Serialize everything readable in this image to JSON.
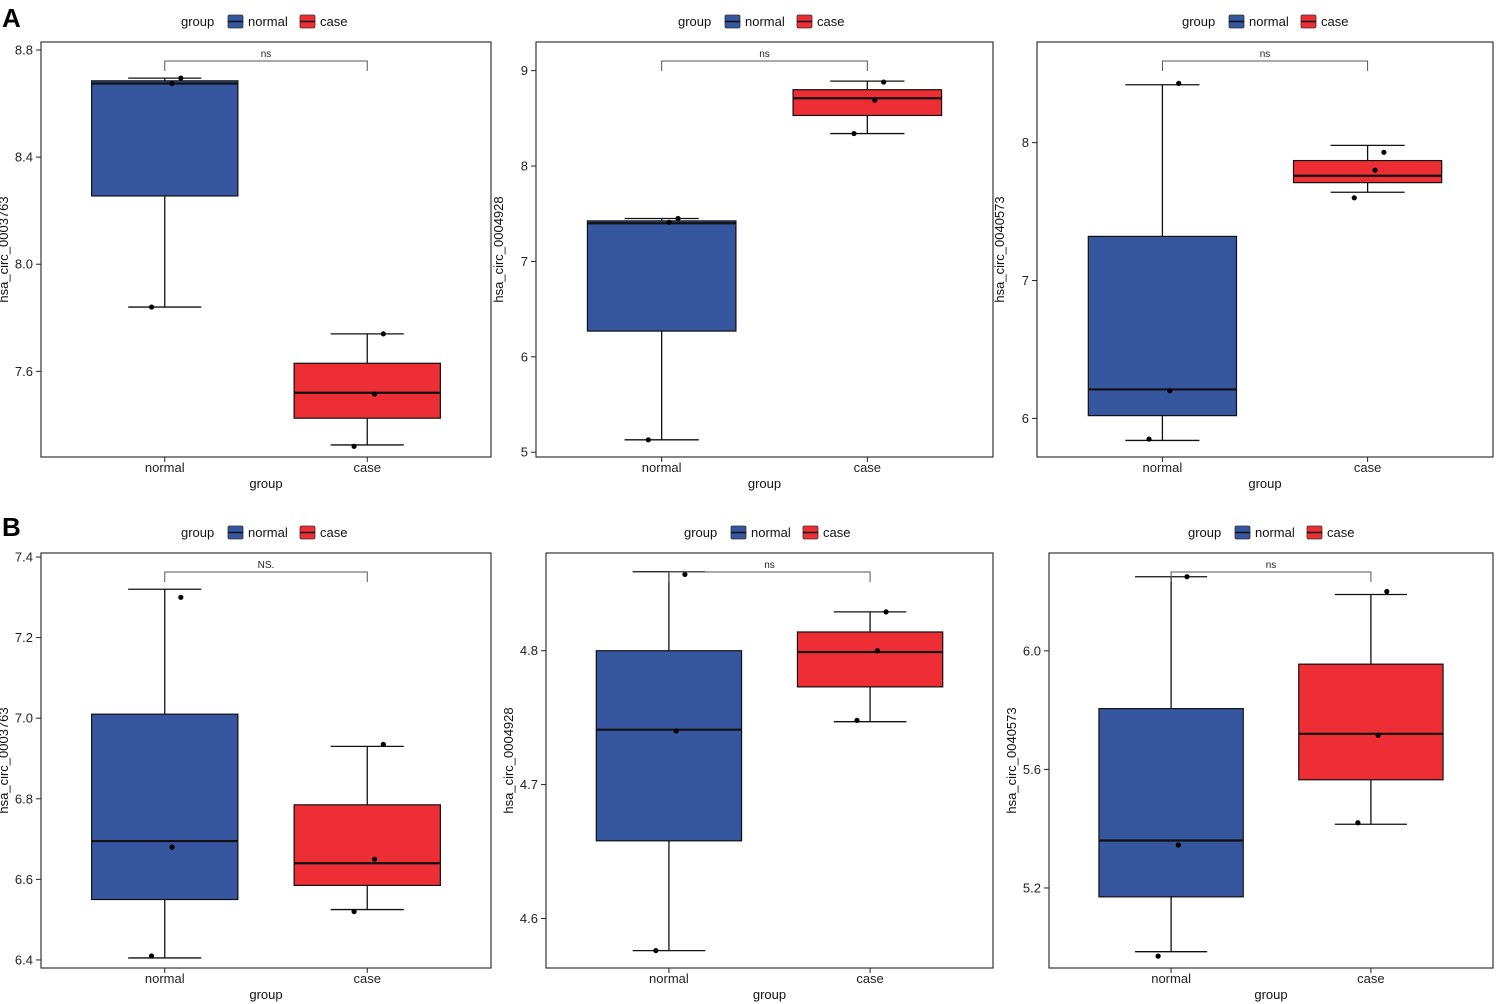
{
  "figure": {
    "panel_labels": [
      "A",
      "B"
    ],
    "colors": {
      "normal": "#3656a0",
      "case": "#ee2e35",
      "stroke": "#111111",
      "bracket": "#555555"
    }
  },
  "chart_data": [
    {
      "type": "box",
      "panel": "A",
      "title": "",
      "xlabel": "group",
      "ylabel": "hsa_circ_0003763",
      "categories": [
        "normal",
        "case"
      ],
      "legend": {
        "title": "group",
        "entries": [
          "normal",
          "case"
        ],
        "position": "top"
      },
      "ylim": [
        7.28,
        8.83
      ],
      "yticks": [
        7.6,
        8.0,
        8.4,
        8.8
      ],
      "ytick_labels": [
        "7.6",
        "8.0",
        "8.4",
        "8.8"
      ],
      "significance": "ns",
      "series": [
        {
          "name": "normal",
          "min": 7.84,
          "q1": 8.255,
          "median": 8.675,
          "q3": 8.685,
          "max": 8.695,
          "points": [
            7.84,
            8.675,
            8.695
          ]
        },
        {
          "name": "case",
          "min": 7.325,
          "q1": 7.425,
          "median": 7.52,
          "q3": 7.63,
          "max": 7.74,
          "points": [
            7.32,
            7.515,
            7.74
          ]
        }
      ]
    },
    {
      "type": "box",
      "panel": "A",
      "title": "",
      "xlabel": "group",
      "ylabel": "hsa_circ_0004928",
      "categories": [
        "normal",
        "case"
      ],
      "legend": {
        "title": "group",
        "entries": [
          "normal",
          "case"
        ],
        "position": "top"
      },
      "ylim": [
        4.95,
        9.3
      ],
      "yticks": [
        5,
        6,
        7,
        8,
        9
      ],
      "ytick_labels": [
        "5",
        "6",
        "7",
        "8",
        "9"
      ],
      "significance": "ns",
      "series": [
        {
          "name": "normal",
          "min": 5.13,
          "q1": 6.27,
          "median": 7.4,
          "q3": 7.425,
          "max": 7.45,
          "points": [
            5.13,
            7.41,
            7.45
          ]
        },
        {
          "name": "case",
          "min": 8.34,
          "q1": 8.53,
          "median": 8.71,
          "q3": 8.8,
          "max": 8.89,
          "points": [
            8.34,
            8.69,
            8.88
          ]
        }
      ]
    },
    {
      "type": "box",
      "panel": "A",
      "title": "",
      "xlabel": "group",
      "ylabel": "hsa_circ_0040573",
      "categories": [
        "normal",
        "case"
      ],
      "legend": {
        "title": "group",
        "entries": [
          "normal",
          "case"
        ],
        "position": "top"
      },
      "ylim": [
        5.72,
        8.73
      ],
      "yticks": [
        6,
        7,
        8
      ],
      "ytick_labels": [
        "6",
        "7",
        "8"
      ],
      "significance": "ns",
      "series": [
        {
          "name": "normal",
          "min": 5.84,
          "q1": 6.02,
          "median": 6.21,
          "q3": 7.32,
          "max": 8.42,
          "points": [
            5.85,
            6.2,
            8.43
          ]
        },
        {
          "name": "case",
          "min": 7.64,
          "q1": 7.71,
          "median": 7.76,
          "q3": 7.87,
          "max": 7.98,
          "points": [
            7.6,
            7.8,
            7.93
          ]
        }
      ]
    },
    {
      "type": "box",
      "panel": "B",
      "title": "",
      "xlabel": "group",
      "ylabel": "hsa_circ_0003763",
      "categories": [
        "normal",
        "case"
      ],
      "legend": {
        "title": "group",
        "entries": [
          "normal",
          "case"
        ],
        "position": "top"
      },
      "ylim": [
        6.38,
        7.41
      ],
      "yticks": [
        6.4,
        6.6,
        6.8,
        7.0,
        7.2,
        7.4
      ],
      "ytick_labels": [
        "6.4",
        "6.6",
        "6.8",
        "7.0",
        "7.2",
        "7.4"
      ],
      "significance": "NS.",
      "series": [
        {
          "name": "normal",
          "min": 6.405,
          "q1": 6.55,
          "median": 6.695,
          "q3": 7.01,
          "max": 7.32,
          "points": [
            6.41,
            6.68,
            7.3
          ]
        },
        {
          "name": "case",
          "min": 6.525,
          "q1": 6.585,
          "median": 6.64,
          "q3": 6.785,
          "max": 6.93,
          "points": [
            6.52,
            6.65,
            6.935
          ]
        }
      ]
    },
    {
      "type": "box",
      "panel": "B",
      "title": "",
      "xlabel": "group",
      "ylabel": "hsa_circ_0004928",
      "categories": [
        "normal",
        "case"
      ],
      "legend": {
        "title": "group",
        "entries": [
          "normal",
          "case"
        ],
        "position": "top"
      },
      "ylim": [
        4.563,
        4.873
      ],
      "yticks": [
        4.6,
        4.7,
        4.8
      ],
      "ytick_labels": [
        "4.6",
        "4.7",
        "4.8"
      ],
      "significance": "ns",
      "series": [
        {
          "name": "normal",
          "min": 4.576,
          "q1": 4.658,
          "median": 4.741,
          "q3": 4.8,
          "max": 4.859,
          "points": [
            4.576,
            4.74,
            4.857
          ]
        },
        {
          "name": "case",
          "min": 4.747,
          "q1": 4.773,
          "median": 4.799,
          "q3": 4.814,
          "max": 4.829,
          "points": [
            4.748,
            4.8,
            4.829
          ]
        }
      ]
    },
    {
      "type": "box",
      "panel": "B",
      "title": "",
      "xlabel": "group",
      "ylabel": "hsa_circ_0040573",
      "categories": [
        "normal",
        "case"
      ],
      "legend": {
        "title": "group",
        "entries": [
          "normal",
          "case"
        ],
        "position": "top"
      },
      "ylim": [
        4.93,
        6.33
      ],
      "yticks": [
        5.2,
        5.6,
        6.0
      ],
      "ytick_labels": [
        "5.2",
        "5.6",
        "6.0"
      ],
      "significance": "ns",
      "series": [
        {
          "name": "normal",
          "min": 4.985,
          "q1": 5.17,
          "median": 5.36,
          "q3": 5.805,
          "max": 6.25,
          "points": [
            4.97,
            5.345,
            6.25
          ]
        },
        {
          "name": "case",
          "min": 5.415,
          "q1": 5.565,
          "median": 5.72,
          "q3": 5.955,
          "max": 6.19,
          "points": [
            5.42,
            5.715,
            6.2
          ]
        }
      ]
    }
  ]
}
